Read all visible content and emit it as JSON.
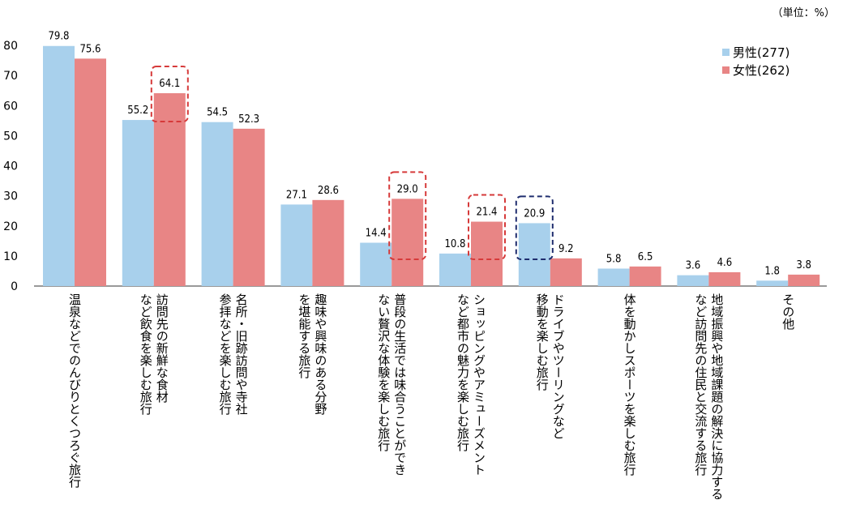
{
  "unit_note": "（単位：%）",
  "chart_data": {
    "type": "bar",
    "ylim": [
      0,
      80
    ],
    "yticks": [
      0,
      10,
      20,
      30,
      40,
      50,
      60,
      70,
      80
    ],
    "legend_position": "top-right",
    "grid": false,
    "categories": [
      [
        "温泉などでのんびりとくつろぐ旅行"
      ],
      [
        "訪問先の新鮮な食材",
        "など飲食を楽しむ旅行"
      ],
      [
        "名所・旧跡訪問や寺社",
        "参拝などを楽しむ旅行"
      ],
      [
        "趣味や興味のある分野",
        "を堪能する旅行"
      ],
      [
        "普段の生活では味合うことができ",
        "ない贅沢な体験を楽しむ旅行"
      ],
      [
        "ショッピングやアミューズメント",
        "など都市の魅力を楽しむ旅行"
      ],
      [
        "ドライブやツーリングなど",
        "移動を楽しむ旅行"
      ],
      [
        "体を動かしスポーツを楽しむ旅行"
      ],
      [
        "地域振興や地域課題の解決に協力する",
        "など訪問先の住民と交流する旅行"
      ],
      [
        "その他"
      ]
    ],
    "series": [
      {
        "name": "男性(277)",
        "color": "#a8d0ec",
        "values": [
          79.8,
          55.2,
          54.5,
          27.1,
          14.4,
          10.8,
          20.9,
          5.8,
          3.6,
          1.8
        ]
      },
      {
        "name": "女性(262)",
        "color": "#e88585",
        "values": [
          75.6,
          64.1,
          52.3,
          28.6,
          29.0,
          21.4,
          9.2,
          6.5,
          4.6,
          3.8
        ]
      }
    ],
    "highlights": [
      {
        "series": 1,
        "category": 1,
        "color": "#d63a3a"
      },
      {
        "series": 1,
        "category": 4,
        "color": "#d63a3a"
      },
      {
        "series": 1,
        "category": 5,
        "color": "#d63a3a"
      },
      {
        "series": 0,
        "category": 6,
        "color": "#1f2d6e"
      }
    ]
  }
}
